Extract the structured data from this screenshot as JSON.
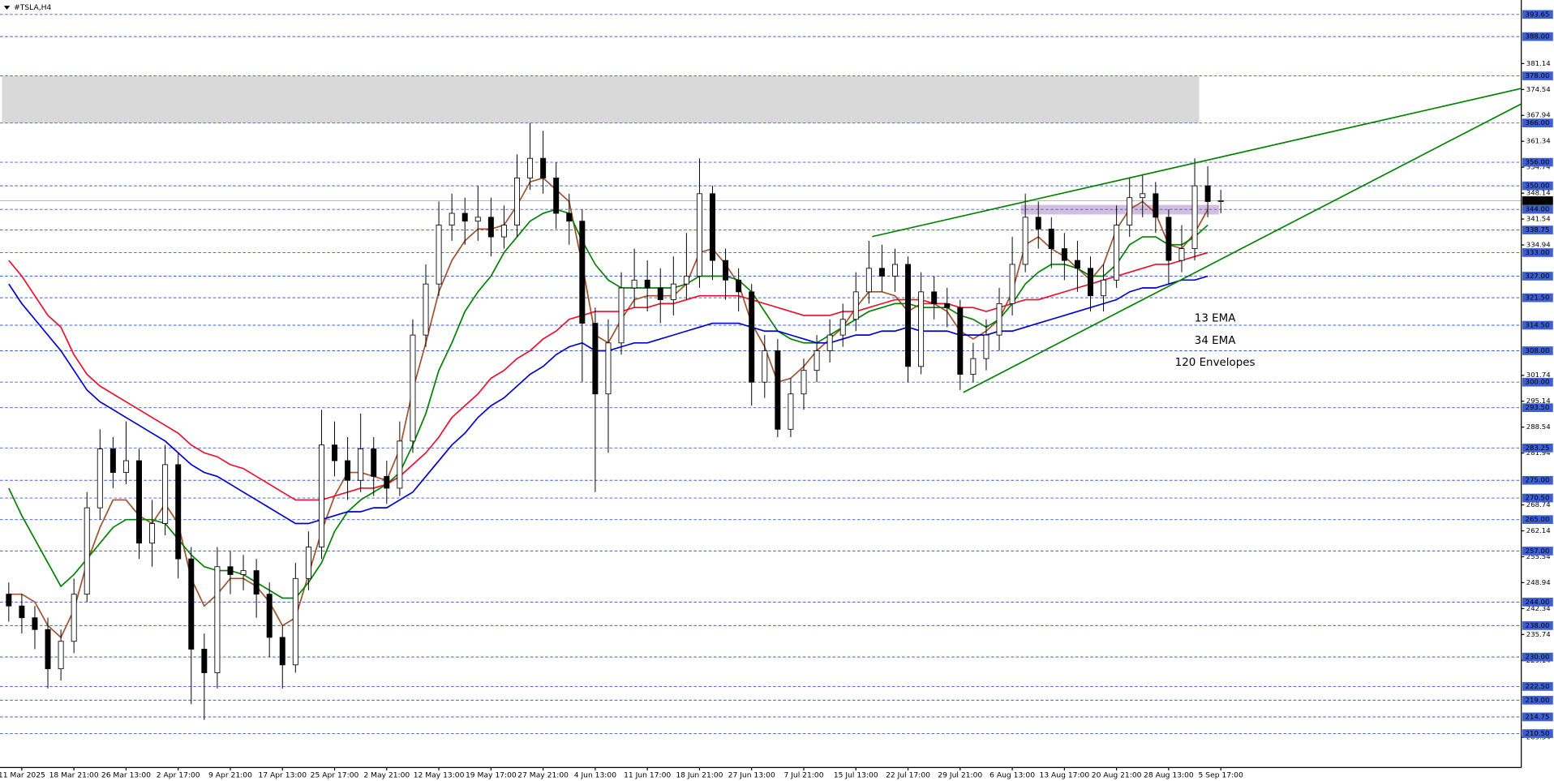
{
  "chart_data": {
    "type": "candlestick",
    "title": "#TSLA,H4",
    "ylim": [
      202.1,
      396.1
    ],
    "yticks": [
      381.14,
      374.54,
      367.94,
      361.34,
      354.74,
      348.14,
      341.54,
      334.94,
      301.74,
      295.14,
      288.54,
      281.94,
      268.74,
      262.14,
      255.54,
      248.94,
      242.34,
      235.74,
      229.14,
      209.54
    ],
    "levels": [
      393.65,
      {
        "value": 388,
        "label": "388.00"
      },
      {
        "value": 378,
        "label": "378.00"
      },
      {
        "value": 366,
        "label": "366.00"
      },
      {
        "value": 356,
        "label": "356.00"
      },
      {
        "value": 350,
        "label": "350.00"
      },
      {
        "value": 344,
        "label": "344.00"
      },
      338.75,
      {
        "value": 333,
        "label": "333.00"
      },
      {
        "value": 327,
        "label": "327.00"
      },
      {
        "value": 321.5,
        "label": "321.50"
      },
      {
        "value": 314.5,
        "label": "314.50"
      },
      {
        "value": 308,
        "label": "308.00"
      },
      {
        "value": 300,
        "label": "300.00"
      },
      {
        "value": 293.5,
        "label": "293.50"
      },
      283.25,
      {
        "value": 275,
        "label": "275.00"
      },
      {
        "value": 270.5,
        "label": "270.50"
      },
      {
        "value": 265,
        "label": "265.00"
      },
      {
        "value": 257,
        "label": "257.00"
      },
      {
        "value": 244,
        "label": "244.00"
      },
      {
        "value": 238,
        "label": "238.00"
      },
      {
        "value": 230,
        "label": "230.00"
      },
      {
        "value": 222.5,
        "label": "222.50"
      },
      {
        "value": 219,
        "label": "219.00"
      },
      214.75,
      {
        "value": 210.5,
        "label": "210.50"
      }
    ],
    "last_price": 346.22,
    "categories": [
      null,
      "11 Mar 2025",
      null,
      null,
      null,
      "18 Mar 21:00",
      null,
      null,
      null,
      "26 Mar 13:00",
      null,
      null,
      null,
      "2 Apr 17:00",
      null,
      null,
      null,
      "9 Apr 21:00",
      null,
      null,
      null,
      "17 Apr 13:00",
      null,
      null,
      null,
      "25 Apr 17:00",
      null,
      null,
      null,
      "2 May 21:00",
      null,
      null,
      null,
      "12 May 13:00",
      null,
      null,
      null,
      "19 May 17:00",
      null,
      null,
      null,
      "27 May 21:00",
      null,
      null,
      null,
      "4 Jun 13:00",
      null,
      null,
      null,
      "11 Jun 17:00",
      null,
      null,
      null,
      "18 Jun 21:00",
      null,
      null,
      null,
      "27 Jun 13:00",
      null,
      null,
      null,
      "7 Jul 21:00",
      null,
      null,
      null,
      "15 Jul 13:00",
      null,
      null,
      null,
      "22 Jul 17:00",
      null,
      null,
      null,
      "29 Jul 21:00",
      null,
      null,
      null,
      "6 Aug 13:00",
      null,
      null,
      null,
      "13 Aug 17:00",
      null,
      null,
      null,
      "20 Aug 21:00",
      null,
      null,
      null,
      "28 Aug 13:00",
      null,
      null,
      null,
      "5 Sep 17:00"
    ],
    "open": [
      246,
      243,
      240,
      237,
      227,
      234,
      246,
      268,
      283,
      277,
      280,
      259,
      264,
      279,
      255,
      232,
      226,
      253,
      251,
      252,
      246,
      235,
      228,
      250,
      258,
      284,
      280,
      275,
      283,
      276,
      273,
      285,
      312,
      325,
      340,
      343,
      341,
      342,
      337,
      340,
      352,
      357,
      352,
      343,
      341,
      315,
      297,
      310,
      324,
      326,
      324,
      321,
      325,
      327,
      348,
      331,
      326,
      323,
      300,
      308,
      288,
      297,
      303,
      308,
      312,
      316,
      323,
      329,
      327,
      330,
      304,
      323,
      320,
      319,
      302,
      306,
      312,
      320,
      330,
      342,
      339,
      334,
      331,
      329,
      322,
      326,
      340,
      347,
      348,
      342,
      331,
      334,
      350,
      346
    ],
    "high": [
      249,
      246,
      243,
      240,
      237,
      250,
      272,
      288,
      286,
      290,
      283,
      270,
      284,
      282,
      258,
      236,
      258,
      257,
      256,
      255,
      249,
      238,
      254,
      262,
      293,
      290,
      286,
      292,
      286,
      280,
      290,
      316,
      330,
      346,
      348,
      347,
      350,
      347,
      345,
      358,
      366,
      364,
      356,
      348,
      344,
      319,
      316,
      328,
      334,
      331,
      329,
      332,
      338,
      357,
      350,
      334,
      329,
      325,
      312,
      311,
      301,
      306,
      312,
      316,
      320,
      328,
      336,
      335,
      334,
      332,
      328,
      327,
      324,
      321,
      310,
      316,
      324,
      337,
      348,
      346,
      342,
      338,
      336,
      332,
      330,
      345,
      352,
      353,
      351,
      344,
      340,
      357,
      355,
      349
    ],
    "low": [
      239,
      236,
      232,
      222,
      224,
      231,
      244,
      265,
      273,
      274,
      255,
      253,
      261,
      250,
      218,
      214,
      222,
      246,
      247,
      240,
      230,
      222,
      226,
      247,
      255,
      276,
      270,
      272,
      271,
      269,
      271,
      282,
      309,
      322,
      336,
      335,
      336,
      332,
      334,
      337,
      349,
      348,
      339,
      335,
      300,
      272,
      282,
      307,
      319,
      318,
      315,
      317,
      321,
      324,
      326,
      321,
      318,
      294,
      296,
      286,
      286,
      293,
      300,
      305,
      309,
      313,
      320,
      323,
      323,
      300,
      302,
      316,
      314,
      298,
      300,
      303,
      308,
      317,
      328,
      334,
      329,
      326,
      323,
      318,
      318,
      324,
      337,
      342,
      338,
      325,
      328,
      331,
      342,
      343
    ],
    "close": [
      243,
      240,
      237,
      227,
      234,
      246,
      268,
      283,
      277,
      280,
      259,
      264,
      279,
      255,
      232,
      226,
      253,
      251,
      252,
      246,
      235,
      228,
      250,
      258,
      284,
      280,
      275,
      283,
      276,
      273,
      285,
      312,
      325,
      340,
      343,
      341,
      342,
      337,
      340,
      352,
      357,
      352,
      343,
      341,
      315,
      297,
      310,
      324,
      326,
      324,
      321,
      325,
      327,
      348,
      331,
      326,
      323,
      300,
      308,
      288,
      297,
      303,
      308,
      312,
      316,
      323,
      329,
      327,
      330,
      304,
      323,
      320,
      319,
      302,
      306,
      312,
      320,
      330,
      342,
      339,
      334,
      331,
      329,
      322,
      326,
      340,
      347,
      348,
      342,
      331,
      334,
      350,
      346,
      346.22
    ],
    "series": [
      {
        "name": "13 EMA",
        "color": "#a0522d",
        "values": [
          246,
          246,
          244,
          238,
          235,
          242,
          254,
          263,
          270,
          270,
          266,
          264,
          269,
          264,
          250,
          243,
          246,
          250,
          250,
          248,
          244,
          238,
          240,
          251,
          262,
          271,
          277,
          277,
          276,
          275,
          283,
          298,
          310,
          323,
          331,
          336,
          339,
          339,
          340,
          345,
          351,
          352,
          349,
          346,
          330,
          312,
          310,
          316,
          321,
          322,
          322,
          322,
          325,
          333,
          334,
          330,
          325,
          315,
          309,
          300,
          301,
          304,
          308,
          311,
          314,
          319,
          323,
          323,
          322,
          318,
          320,
          320,
          318,
          313,
          311,
          313,
          316,
          323,
          335,
          337,
          334,
          332,
          329,
          326,
          330,
          339,
          344,
          346,
          343,
          335,
          334,
          338,
          344,
          null
        ]
      },
      {
        "name": "34 EMA",
        "color": "#008000",
        "values": [
          273,
          266,
          260,
          254,
          248,
          251,
          255,
          259,
          263,
          265,
          265,
          265,
          264,
          260,
          256,
          253,
          252,
          252,
          251,
          249,
          247,
          245,
          245,
          249,
          254,
          262,
          267,
          270,
          272,
          274,
          277,
          284,
          292,
          303,
          310,
          318,
          323,
          327,
          333,
          337,
          341,
          343,
          344,
          343,
          336,
          330,
          326,
          324,
          324,
          324,
          324,
          324,
          325,
          327,
          327,
          327,
          326,
          323,
          318,
          313,
          311,
          310,
          310,
          312,
          314,
          316,
          318,
          319,
          320,
          320,
          319,
          319,
          319,
          317,
          316,
          314,
          316,
          320,
          325,
          328,
          330,
          330,
          329,
          327,
          327,
          330,
          335,
          337,
          337,
          335,
          335,
          337,
          340,
          null
        ]
      },
      {
        "name": "120 Envelopes",
        "color": "#e8102e",
        "values": [
          331,
          327,
          322,
          317,
          314,
          307,
          302,
          299,
          297,
          295,
          293,
          291,
          289,
          287,
          284,
          282,
          281,
          279,
          278,
          276,
          274,
          272,
          270,
          270,
          270,
          271,
          272,
          273,
          273,
          274,
          276,
          279,
          282,
          286,
          291,
          294,
          297,
          301,
          303,
          306,
          308,
          311,
          313,
          316,
          317,
          318,
          318,
          318,
          319,
          319,
          320,
          320,
          321,
          322,
          322,
          322,
          322,
          321,
          320,
          319,
          318,
          317,
          317,
          317,
          318,
          318,
          319,
          320,
          321,
          321,
          321,
          320,
          320,
          319,
          319,
          318,
          319,
          320,
          321,
          321,
          322,
          323,
          324,
          325,
          326,
          327,
          328,
          329,
          330,
          330,
          331,
          332,
          333,
          null
        ]
      },
      {
        "color": "#0000cd",
        "values": [
          325,
          320,
          316,
          312,
          308,
          303,
          298,
          295,
          293,
          291,
          289,
          287,
          285,
          282,
          279,
          277,
          276,
          274,
          272,
          270,
          268,
          266,
          264,
          264,
          265,
          266,
          267,
          267,
          268,
          268,
          270,
          272,
          276,
          280,
          284,
          287,
          291,
          294,
          296,
          299,
          302,
          304,
          307,
          309,
          310,
          308,
          308,
          309,
          310,
          310,
          311,
          312,
          313,
          314,
          315,
          315,
          315,
          314,
          313,
          313,
          312,
          311,
          310,
          310,
          311,
          312,
          312,
          313,
          313,
          314,
          313,
          313,
          313,
          312,
          312,
          312,
          313,
          313,
          314,
          315,
          316,
          317,
          318,
          319,
          320,
          321,
          323,
          324,
          324,
          325,
          326,
          326,
          327,
          null
        ]
      }
    ]
  }
}
